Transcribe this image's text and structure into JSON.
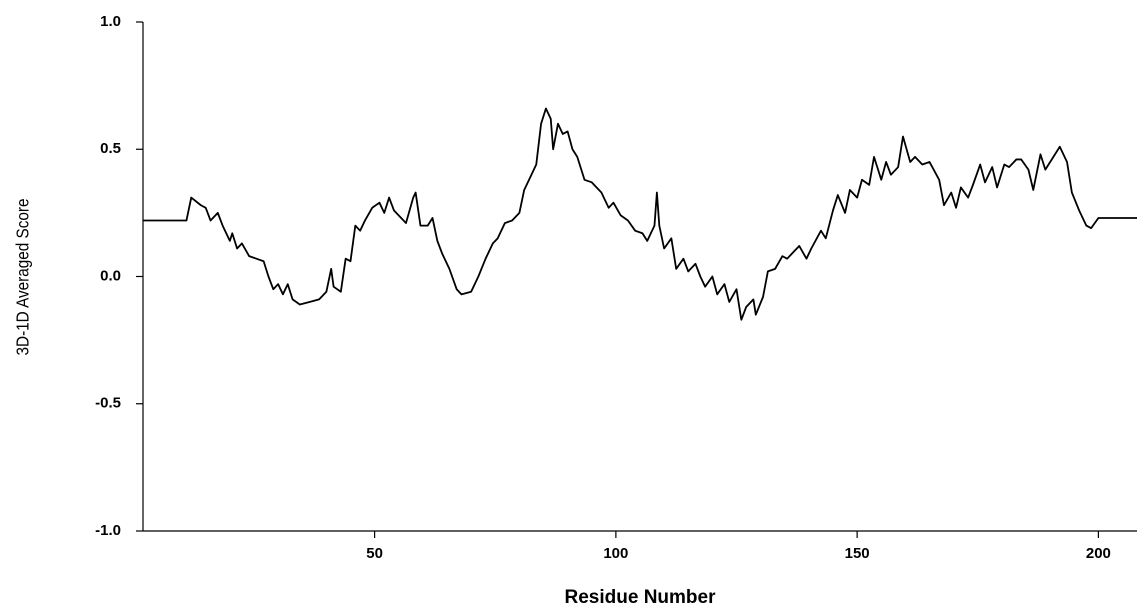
{
  "chart_data": {
    "type": "line",
    "x_label": "Residue Number",
    "y_label": "3D-1D Averaged Score",
    "color": "#000000",
    "xlim": [
      2,
      208
    ],
    "ylim": [
      -1,
      1
    ],
    "xticks": [
      50,
      100,
      150,
      200
    ],
    "yticks": [
      {
        "value": 1,
        "label": "1.0"
      },
      0.5,
      {
        "value": 0,
        "label": "0.0"
      },
      -0.5,
      {
        "value": -1,
        "label": "-1.0"
      }
    ],
    "x": [
      2,
      11,
      12,
      14,
      15,
      16,
      17.5,
      18.5,
      20,
      20.5,
      21.5,
      22.5,
      24,
      25.5,
      27,
      28,
      29,
      30,
      31,
      32,
      33,
      34.5,
      36.5,
      38.5,
      40,
      41,
      41.5,
      43,
      44,
      45,
      46,
      47,
      48,
      49.5,
      51,
      52,
      53,
      54,
      55.5,
      56.5,
      58,
      58.5,
      59.5,
      61,
      62,
      63,
      64,
      65.5,
      67,
      68,
      70,
      71.5,
      73,
      74.5,
      75.5,
      77,
      78.5,
      80,
      81,
      82.5,
      83.5,
      84.5,
      85.5,
      86.5,
      87,
      88,
      89,
      90,
      91,
      92,
      93.5,
      95,
      97,
      98.5,
      99.5,
      101,
      102.5,
      104,
      105.5,
      106.5,
      108,
      108.5,
      109,
      110,
      111.5,
      112.5,
      114,
      115,
      116.5,
      117.5,
      118.5,
      120,
      121,
      122.5,
      123.5,
      125,
      126,
      127,
      128.5,
      129,
      130.5,
      131.5,
      133,
      134.5,
      135.5,
      137,
      138,
      139.5,
      140.5,
      142.5,
      143.5,
      145,
      146,
      147.5,
      148.5,
      150,
      151,
      152.5,
      153.5,
      155,
      156,
      157,
      158.5,
      159.5,
      161,
      162,
      163.5,
      165,
      167,
      168,
      169.5,
      170.5,
      171.5,
      173,
      174,
      175.5,
      176.5,
      178,
      179,
      180.5,
      181.5,
      183,
      184,
      185.5,
      186.5,
      188,
      189,
      191,
      192,
      193.5,
      194.5,
      196,
      197.5,
      198.5,
      200,
      208
    ],
    "values": [
      0.22,
      0.22,
      0.31,
      0.28,
      0.27,
      0.22,
      0.25,
      0.2,
      0.14,
      0.17,
      0.11,
      0.13,
      0.08,
      0.07,
      0.06,
      0.0,
      -0.05,
      -0.03,
      -0.07,
      -0.03,
      -0.09,
      -0.11,
      -0.1,
      -0.09,
      -0.06,
      0.03,
      -0.04,
      -0.06,
      0.07,
      0.06,
      0.2,
      0.18,
      0.22,
      0.27,
      0.29,
      0.25,
      0.31,
      0.26,
      0.23,
      0.21,
      0.31,
      0.33,
      0.2,
      0.2,
      0.23,
      0.14,
      0.09,
      0.03,
      -0.05,
      -0.07,
      -0.06,
      0.0,
      0.07,
      0.13,
      0.15,
      0.21,
      0.22,
      0.25,
      0.34,
      0.4,
      0.44,
      0.6,
      0.66,
      0.62,
      0.5,
      0.6,
      0.56,
      0.57,
      0.5,
      0.47,
      0.38,
      0.37,
      0.33,
      0.27,
      0.29,
      0.24,
      0.22,
      0.18,
      0.17,
      0.14,
      0.2,
      0.33,
      0.2,
      0.11,
      0.15,
      0.03,
      0.07,
      0.02,
      0.05,
      0.0,
      -0.04,
      0.0,
      -0.07,
      -0.03,
      -0.1,
      -0.05,
      -0.17,
      -0.12,
      -0.09,
      -0.15,
      -0.08,
      0.02,
      0.03,
      0.08,
      0.07,
      0.1,
      0.12,
      0.07,
      0.11,
      0.18,
      0.15,
      0.26,
      0.32,
      0.25,
      0.34,
      0.31,
      0.38,
      0.36,
      0.47,
      0.38,
      0.45,
      0.4,
      0.43,
      0.55,
      0.45,
      0.47,
      0.44,
      0.45,
      0.38,
      0.28,
      0.33,
      0.27,
      0.35,
      0.31,
      0.36,
      0.44,
      0.37,
      0.43,
      0.35,
      0.44,
      0.43,
      0.46,
      0.46,
      0.42,
      0.34,
      0.48,
      0.42,
      0.48,
      0.51,
      0.45,
      0.33,
      0.26,
      0.2,
      0.19,
      0.23,
      0.23
    ]
  }
}
